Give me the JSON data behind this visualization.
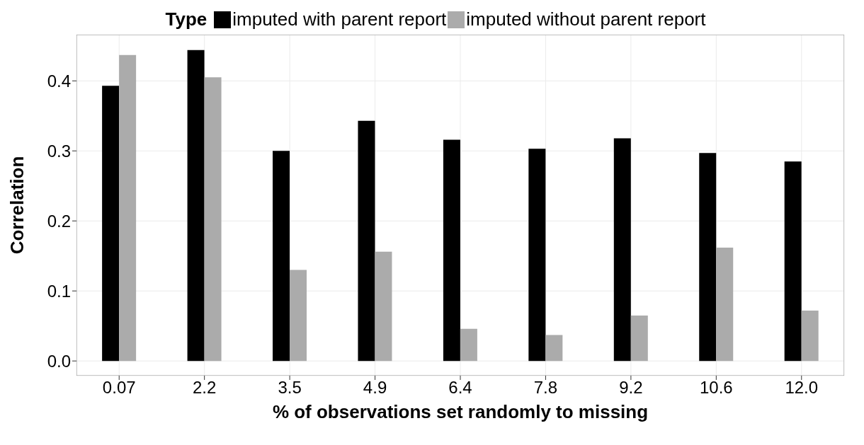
{
  "chart_data": {
    "type": "bar",
    "xlabel": "% of observations set randomly to missing",
    "ylabel": "Correlation",
    "legend_title": "Type",
    "categories": [
      "0.07",
      "2.2",
      "3.5",
      "4.9",
      "6.4",
      "7.8",
      "9.2",
      "10.6",
      "12.0"
    ],
    "series": [
      {
        "name": "imputed with parent report",
        "color": "#000000",
        "values": [
          0.393,
          0.444,
          0.3,
          0.343,
          0.316,
          0.303,
          0.318,
          0.297,
          0.285
        ]
      },
      {
        "name": "imputed without parent report",
        "color": "#ababab",
        "values": [
          0.437,
          0.405,
          0.13,
          0.156,
          0.046,
          0.037,
          0.065,
          0.162,
          0.072
        ]
      }
    ],
    "ylim": [
      -0.021,
      0.466
    ],
    "yticks": [
      {
        "value": 0,
        "label": "0.0"
      },
      0.1,
      0.2,
      0.3,
      0.4
    ],
    "grid": true,
    "legend": "top"
  }
}
